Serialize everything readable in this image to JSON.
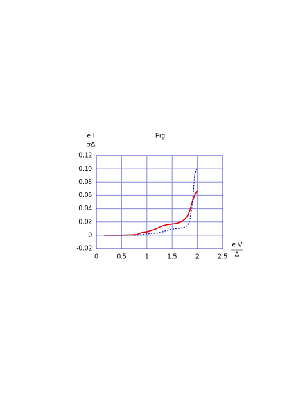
{
  "chart_data": {
    "type": "line",
    "title": "Fig",
    "ylabel": {
      "numerator": "e I",
      "denominator": "σΔ"
    },
    "xlabel": {
      "numerator": "e V",
      "denominator": "Δ"
    },
    "x": [
      0.15,
      0.5,
      0.8,
      0.9,
      1.0,
      1.1,
      1.2,
      1.3,
      1.4,
      1.5,
      1.6,
      1.7,
      1.75,
      1.8,
      1.85,
      1.9,
      1.95,
      2.0
    ],
    "series": [
      {
        "color": "#e00000",
        "dashed": false,
        "values": [
          0,
          0,
          0.001,
          0.004,
          0.005,
          0.007,
          0.01,
          0.014,
          0.016,
          0.017,
          0.018,
          0.021,
          0.024,
          0.028,
          0.037,
          0.05,
          0.06,
          0.067
        ]
      },
      {
        "color": "#0000cc",
        "dashed": true,
        "values": [
          0,
          0,
          0,
          0.001,
          0.002,
          0.003,
          0.003,
          0.005,
          0.007,
          0.009,
          0.01,
          0.011,
          0.012,
          0.014,
          0.022,
          0.045,
          0.09,
          0.103
        ]
      }
    ],
    "xlim": [
      0,
      2.5
    ],
    "xticks": [
      0,
      0.5,
      1,
      1.5,
      2,
      2.5
    ],
    "ylim": [
      -0.02,
      0.12
    ],
    "yticks": [
      -0.02,
      0,
      0.02,
      0.04,
      0.06,
      0.08,
      {
        "value": 0.1,
        "label": "0.10"
      },
      0.12
    ],
    "grid": true,
    "grid_color": "#8888e0",
    "axis_color": "#3333cc"
  }
}
